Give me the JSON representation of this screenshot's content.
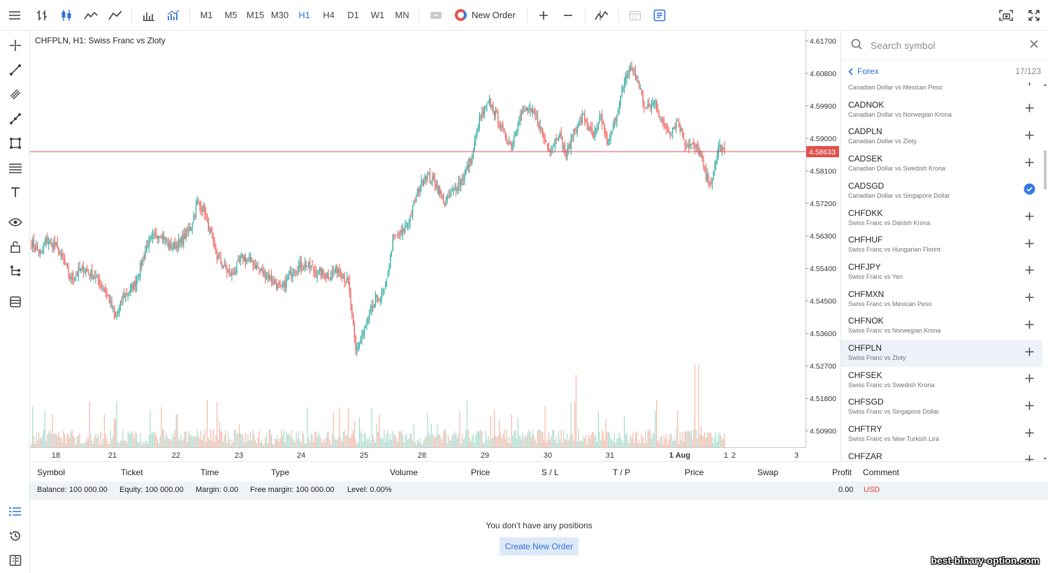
{
  "colors": {
    "up": "#26a69a",
    "down": "#ef5350",
    "accent": "#2e6fd8",
    "price_line": "#e0504c"
  },
  "toolbar": {
    "timeframes": [
      "M1",
      "M5",
      "M15",
      "M30",
      "H1",
      "H4",
      "D1",
      "W1",
      "MN"
    ],
    "active_timeframe": "H1",
    "new_order_label": "New Order"
  },
  "chart": {
    "title": "CHFPLN, H1: Swiss Franc vs Zloty",
    "current_price": "4.58633"
  },
  "chart_data": {
    "type": "candlestick",
    "symbol": "CHFPLN",
    "timeframe": "H1",
    "y_ticks": [
      "4.61700",
      "4.60800",
      "4.59900",
      "4.59000",
      "4.58100",
      "4.57200",
      "4.56300",
      "4.55400",
      "4.54500",
      "4.53600",
      "4.52700",
      "4.51800",
      "4.50900"
    ],
    "ylim": [
      4.5045,
      4.6198
    ],
    "x_ticks": [
      "18",
      "21",
      "22",
      "23",
      "24",
      "25",
      "28",
      "29",
      "30",
      "31",
      "1 Aug",
      "1",
      "2",
      "3"
    ],
    "last_price": 4.58633,
    "path_anchors": [
      [
        0,
        4.561
      ],
      [
        8,
        4.558
      ],
      [
        12,
        4.562
      ],
      [
        20,
        4.56
      ],
      [
        26,
        4.556
      ],
      [
        32,
        4.551
      ],
      [
        42,
        4.554
      ],
      [
        52,
        4.5515
      ],
      [
        60,
        4.548
      ],
      [
        68,
        4.54
      ],
      [
        74,
        4.546
      ],
      [
        84,
        4.55
      ],
      [
        94,
        4.561
      ],
      [
        104,
        4.564
      ],
      [
        112,
        4.56
      ],
      [
        120,
        4.561
      ],
      [
        128,
        4.565
      ],
      [
        134,
        4.572
      ],
      [
        140,
        4.57
      ],
      [
        144,
        4.564
      ],
      [
        150,
        4.557
      ],
      [
        156,
        4.554
      ],
      [
        162,
        4.552
      ],
      [
        170,
        4.557
      ],
      [
        178,
        4.556
      ],
      [
        186,
        4.553
      ],
      [
        194,
        4.551
      ],
      [
        202,
        4.548
      ],
      [
        212,
        4.554
      ],
      [
        222,
        4.555
      ],
      [
        230,
        4.553
      ],
      [
        240,
        4.552
      ],
      [
        248,
        4.554
      ],
      [
        256,
        4.55
      ],
      [
        262,
        4.531
      ],
      [
        270,
        4.538
      ],
      [
        278,
        4.545
      ],
      [
        286,
        4.548
      ],
      [
        292,
        4.562
      ],
      [
        300,
        4.564
      ],
      [
        306,
        4.568
      ],
      [
        312,
        4.575
      ],
      [
        318,
        4.58
      ],
      [
        326,
        4.578
      ],
      [
        334,
        4.572
      ],
      [
        342,
        4.576
      ],
      [
        350,
        4.58
      ],
      [
        356,
        4.585
      ],
      [
        362,
        4.595
      ],
      [
        370,
        4.6
      ],
      [
        376,
        4.596
      ],
      [
        382,
        4.591
      ],
      [
        388,
        4.588
      ],
      [
        394,
        4.596
      ],
      [
        400,
        4.598
      ],
      [
        408,
        4.596
      ],
      [
        414,
        4.59
      ],
      [
        420,
        4.587
      ],
      [
        426,
        4.592
      ],
      [
        432,
        4.585
      ],
      [
        438,
        4.592
      ],
      [
        446,
        4.596
      ],
      [
        454,
        4.59
      ],
      [
        460,
        4.596
      ],
      [
        466,
        4.588
      ],
      [
        472,
        4.596
      ],
      [
        478,
        4.604
      ],
      [
        484,
        4.61
      ],
      [
        490,
        4.606
      ],
      [
        496,
        4.598
      ],
      [
        504,
        4.6
      ],
      [
        510,
        4.594
      ],
      [
        516,
        4.592
      ],
      [
        522,
        4.595
      ],
      [
        528,
        4.589
      ],
      [
        534,
        4.588
      ],
      [
        540,
        4.586
      ],
      [
        545,
        4.579
      ],
      [
        550,
        4.578
      ],
      [
        555,
        4.588
      ],
      [
        560,
        4.5863
      ]
    ]
  },
  "symbol_panel": {
    "search_placeholder": "Search symbol",
    "group": "Forex",
    "count": "17/123",
    "items": [
      {
        "name": "",
        "desc": "Canadian Dollar vs Mexican Peso",
        "checked": false
      },
      {
        "name": "CADNOK",
        "desc": "Canadian Dollar vs Norwegian Krona",
        "checked": false
      },
      {
        "name": "CADPLN",
        "desc": "Canadian Dollar vs Zloty",
        "checked": false
      },
      {
        "name": "CADSEK",
        "desc": "Canadian Dollar vs Swedish Krona",
        "checked": false
      },
      {
        "name": "CADSGD",
        "desc": "Canadian Dollar vs Singapore Dollar",
        "checked": true
      },
      {
        "name": "CHFDKK",
        "desc": "Swiss Franc vs Danish Krona",
        "checked": false
      },
      {
        "name": "CHFHUF",
        "desc": "Swiss Franc vs Hungarian Florint",
        "checked": false
      },
      {
        "name": "CHFJPY",
        "desc": "Swiss Franc vs Yen",
        "checked": false
      },
      {
        "name": "CHFMXN",
        "desc": "Swiss Franc vs Mexican Peso",
        "checked": false
      },
      {
        "name": "CHFNOK",
        "desc": "Swiss Franc vs Norwegian Krona",
        "checked": false
      },
      {
        "name": "CHFPLN",
        "desc": "Swiss Franc vs Zloty",
        "checked": false,
        "highlight": true
      },
      {
        "name": "CHFSEK",
        "desc": "Swiss Franc vs Swedish Krona",
        "checked": false
      },
      {
        "name": "CHFSGD",
        "desc": "Swiss Franc vs Singapore Dollar",
        "checked": false
      },
      {
        "name": "CHFTRY",
        "desc": "Swiss Franc vs New Turkish Lira",
        "checked": false
      },
      {
        "name": "CHFZAR",
        "desc": "",
        "checked": false
      }
    ]
  },
  "terminal": {
    "columns": [
      "Symbol",
      "Ticket",
      "Time",
      "Type",
      "Volume",
      "Price",
      "S / L",
      "T / P",
      "Price",
      "Swap",
      "Profit",
      "Comment"
    ],
    "balance": "Balance: 100 000.00",
    "equity": "Equity: 100 000.00",
    "margin": "Margin: 0.00",
    "free_margin": "Free margin: 100 000.00",
    "level": "Level: 0.00%",
    "profit_total": "0.00",
    "currency": "USD",
    "empty_message": "You don’t have any positions",
    "create_order_label": "Create New Order"
  },
  "watermark": "best-binary-option.com"
}
